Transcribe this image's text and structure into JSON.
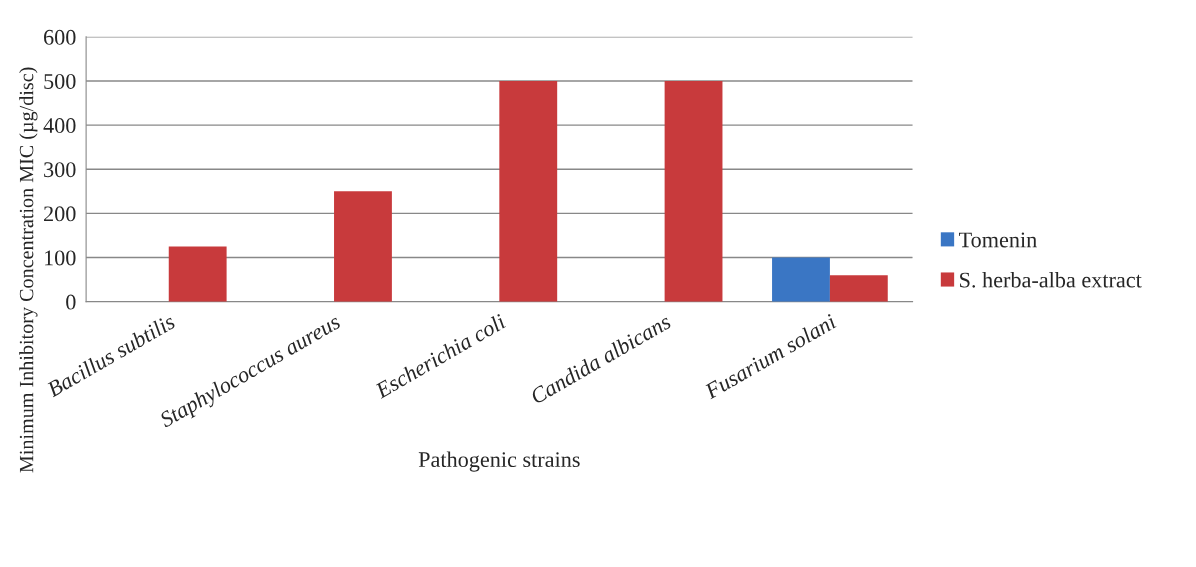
{
  "chart_data": {
    "type": "bar",
    "xlabel": "Pathogenic strains",
    "ylabel": "Minimum Inhibitory Concentration MIC (µg/disc)",
    "categories": [
      "Bacillus subtilis",
      "Staphylococcus aureus",
      "Escherichia coli",
      "Candida albicans",
      "Fusarium solani"
    ],
    "series": [
      {
        "name": "Tomenin",
        "color": "#3a76c4",
        "values": [
          null,
          null,
          null,
          null,
          100
        ]
      },
      {
        "name": "S. herba-alba extract",
        "color": "#c83a3c",
        "values": [
          125,
          250,
          500,
          500,
          60
        ]
      }
    ],
    "ylim": [
      0,
      600
    ],
    "yticks": [
      0,
      100,
      200,
      300,
      400,
      500,
      600
    ],
    "grid": "y",
    "legend": "right"
  }
}
